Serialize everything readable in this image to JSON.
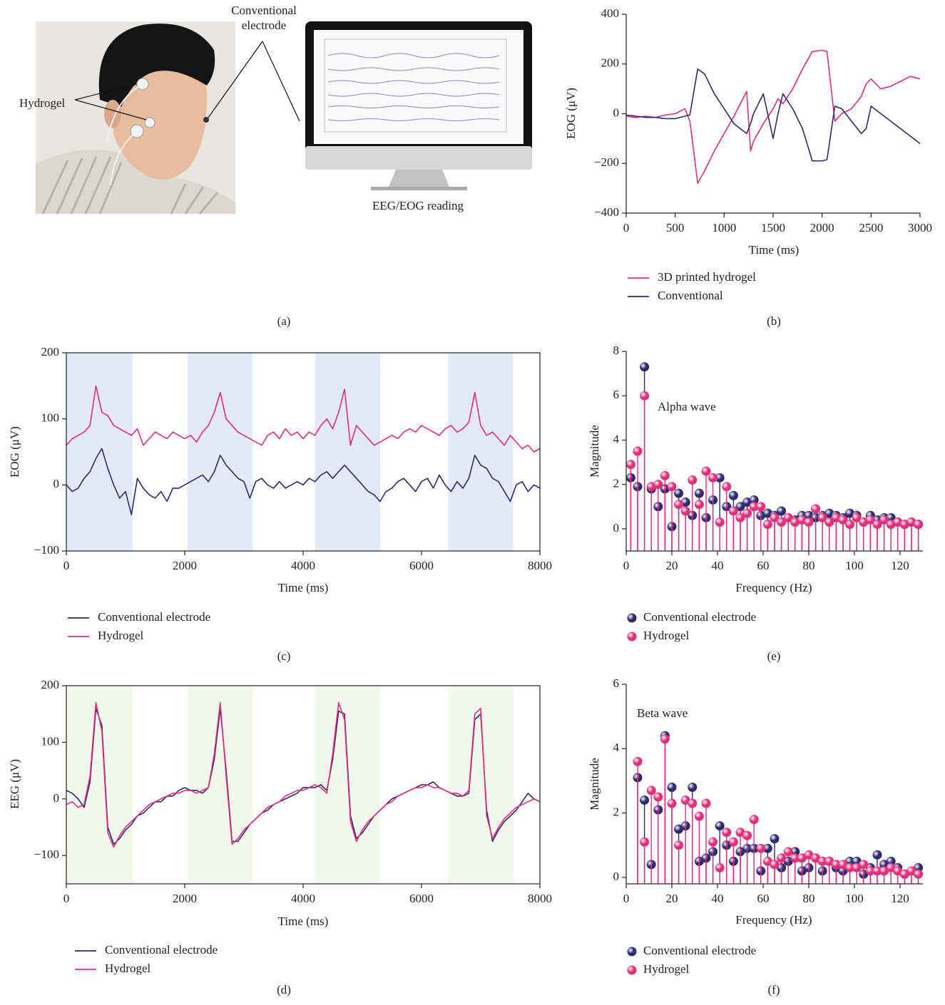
{
  "photo": {
    "labels": [
      "Conventional electrode",
      "Hydrogel"
    ],
    "screen_caption": "EEG/EOG reading",
    "caption": "(a)"
  },
  "chart_data": [
    {
      "type": "line",
      "caption": "(b)",
      "x_label": "Time (ms)",
      "y_label": "EOG (μV)",
      "xlim": [
        0,
        3000
      ],
      "xticks": [
        0,
        500,
        1000,
        1500,
        2000,
        2500,
        3000
      ],
      "ylim": [
        -400,
        400
      ],
      "yticks": [
        {
          "value": -400,
          "label": "−400"
        },
        {
          "value": -200,
          "label": "−200"
        },
        0,
        200,
        400
      ],
      "box": false,
      "x": [
        0,
        100,
        200,
        300,
        400,
        500,
        600,
        650,
        730,
        800,
        900,
        1000,
        1100,
        1230,
        1270,
        1300,
        1400,
        1500,
        1550,
        1600,
        1700,
        1800,
        1900,
        2000,
        2050,
        2130,
        2200,
        2300,
        2400,
        2450,
        2500,
        2600,
        2700,
        2800,
        2900,
        3000
      ],
      "series": [
        {
          "name": "3D printed hydrogel",
          "color": "#e0307a",
          "values": [
            -10,
            -15,
            -10,
            -15,
            -5,
            0,
            20,
            -30,
            -280,
            -230,
            -150,
            -80,
            -10,
            90,
            -150,
            -110,
            -40,
            20,
            60,
            40,
            100,
            180,
            250,
            255,
            250,
            -30,
            0,
            20,
            70,
            120,
            140,
            100,
            110,
            130,
            150,
            140
          ]
        },
        {
          "name": "Conventional",
          "color": "#2e2a6e",
          "values": [
            -5,
            -10,
            -15,
            -15,
            -20,
            -20,
            -10,
            -5,
            180,
            160,
            80,
            20,
            -40,
            -80,
            -40,
            0,
            80,
            -100,
            0,
            80,
            20,
            -60,
            -190,
            -190,
            -185,
            30,
            20,
            -30,
            -80,
            -60,
            30,
            0,
            -30,
            -60,
            -90,
            -120
          ]
        }
      ]
    },
    {
      "type": "line",
      "caption": "(c)",
      "x_label": "Time (ms)",
      "y_label": "EOG (μV)",
      "xlim": [
        0,
        8000
      ],
      "xticks": [
        0,
        2000,
        4000,
        6000,
        8000
      ],
      "ylim": [
        -100,
        200
      ],
      "yticks": [
        {
          "value": -100,
          "label": "−100"
        },
        0,
        100,
        200
      ],
      "box": true,
      "shade_color": "#e4e9f7",
      "shaded_regions": [
        [
          0,
          1120
        ],
        [
          2050,
          3150
        ],
        [
          4200,
          5300
        ],
        [
          6450,
          7550
        ]
      ],
      "x": [
        0,
        100,
        200,
        300,
        400,
        500,
        600,
        700,
        800,
        900,
        1000,
        1100,
        1200,
        1300,
        1400,
        1500,
        1600,
        1700,
        1800,
        1900,
        2000,
        2100,
        2200,
        2300,
        2400,
        2500,
        2600,
        2700,
        2800,
        2900,
        3000,
        3100,
        3200,
        3300,
        3400,
        3500,
        3600,
        3700,
        3800,
        3900,
        4000,
        4100,
        4200,
        4300,
        4400,
        4500,
        4600,
        4700,
        4800,
        4900,
        5000,
        5100,
        5200,
        5300,
        5400,
        5500,
        5600,
        5700,
        5800,
        5900,
        6000,
        6100,
        6200,
        6300,
        6400,
        6500,
        6600,
        6700,
        6800,
        6900,
        7000,
        7100,
        7200,
        7300,
        7400,
        7500,
        7600,
        7700,
        7800,
        7900,
        8000
      ],
      "series": [
        {
          "name": "Conventional electrode",
          "color": "#2e2a6e",
          "values": [
            0,
            -10,
            -5,
            10,
            20,
            40,
            55,
            25,
            0,
            -20,
            -10,
            -45,
            10,
            -5,
            -15,
            -20,
            -10,
            -25,
            -5,
            -5,
            0,
            5,
            10,
            15,
            5,
            20,
            45,
            30,
            20,
            10,
            5,
            -20,
            5,
            10,
            0,
            -5,
            5,
            -5,
            0,
            5,
            0,
            10,
            5,
            15,
            20,
            10,
            20,
            30,
            20,
            10,
            0,
            -10,
            -15,
            -25,
            -10,
            -5,
            5,
            10,
            0,
            -10,
            5,
            10,
            -5,
            15,
            0,
            -10,
            5,
            -5,
            10,
            45,
            30,
            25,
            10,
            5,
            -10,
            -25,
            0,
            5,
            -10,
            0,
            -5
          ]
        },
        {
          "name": "Hydrogel",
          "color": "#e0307a",
          "values": [
            60,
            70,
            75,
            80,
            90,
            150,
            110,
            105,
            90,
            85,
            80,
            75,
            85,
            60,
            70,
            80,
            75,
            70,
            80,
            75,
            70,
            75,
            65,
            80,
            90,
            110,
            140,
            100,
            90,
            80,
            75,
            70,
            65,
            60,
            75,
            80,
            70,
            85,
            75,
            80,
            70,
            80,
            75,
            90,
            100,
            85,
            110,
            145,
            60,
            90,
            80,
            70,
            60,
            65,
            70,
            75,
            70,
            80,
            85,
            80,
            90,
            85,
            80,
            75,
            85,
            90,
            80,
            85,
            95,
            140,
            90,
            75,
            80,
            70,
            60,
            75,
            65,
            55,
            60,
            50,
            55
          ]
        }
      ]
    },
    {
      "type": "line",
      "caption": "(d)",
      "x_label": "Time (ms)",
      "y_label": "EEG (μV)",
      "xlim": [
        0,
        8000
      ],
      "xticks": [
        0,
        2000,
        4000,
        6000,
        8000
      ],
      "ylim": [
        -150,
        200
      ],
      "yticks": [
        {
          "value": -100,
          "label": "−100"
        },
        0,
        100,
        200
      ],
      "box": true,
      "shade_color": "#f3f8ec",
      "shaded_regions": [
        [
          0,
          1120
        ],
        [
          2050,
          3150
        ],
        [
          4200,
          5300
        ],
        [
          6450,
          7550
        ]
      ],
      "x": [
        0,
        100,
        200,
        300,
        400,
        500,
        600,
        700,
        800,
        900,
        1000,
        1100,
        1200,
        1300,
        1400,
        1500,
        1600,
        1700,
        1800,
        1900,
        2000,
        2100,
        2200,
        2300,
        2400,
        2500,
        2600,
        2700,
        2800,
        2900,
        3000,
        3100,
        3200,
        3300,
        3400,
        3500,
        3600,
        3700,
        3800,
        3900,
        4000,
        4100,
        4200,
        4300,
        4400,
        4500,
        4600,
        4700,
        4800,
        4900,
        5000,
        5100,
        5200,
        5300,
        5400,
        5500,
        5600,
        5700,
        5800,
        5900,
        6000,
        6100,
        6200,
        6300,
        6400,
        6500,
        6600,
        6700,
        6800,
        6900,
        7000,
        7100,
        7200,
        7300,
        7400,
        7500,
        7600,
        7700,
        7800,
        7900,
        8000
      ],
      "series": [
        {
          "name": "Conventional electrode",
          "color": "#2e2a6e",
          "values": [
            15,
            10,
            0,
            -15,
            30,
            160,
            130,
            -50,
            -80,
            -70,
            -55,
            -45,
            -30,
            -25,
            -15,
            -5,
            -5,
            5,
            5,
            15,
            20,
            15,
            15,
            10,
            20,
            70,
            160,
            50,
            -75,
            -75,
            -60,
            -45,
            -35,
            -25,
            -20,
            -10,
            -5,
            0,
            5,
            10,
            20,
            20,
            20,
            25,
            15,
            70,
            155,
            150,
            -30,
            -70,
            -60,
            -45,
            -30,
            -20,
            -10,
            0,
            5,
            10,
            15,
            20,
            25,
            25,
            30,
            20,
            15,
            10,
            5,
            5,
            10,
            140,
            150,
            -20,
            -75,
            -55,
            -40,
            -30,
            -20,
            -5,
            10,
            0,
            -5
          ]
        },
        {
          "name": "Hydrogel",
          "color": "#e0307a",
          "values": [
            -10,
            -5,
            -15,
            -10,
            40,
            170,
            120,
            -60,
            -85,
            -65,
            -50,
            -40,
            -30,
            -20,
            -10,
            -5,
            0,
            5,
            10,
            10,
            15,
            15,
            10,
            15,
            20,
            80,
            170,
            40,
            -80,
            -70,
            -55,
            -45,
            -35,
            -25,
            -15,
            -10,
            -5,
            5,
            10,
            15,
            15,
            20,
            25,
            20,
            10,
            80,
            170,
            140,
            -40,
            -75,
            -55,
            -40,
            -30,
            -20,
            -10,
            -5,
            5,
            10,
            15,
            20,
            20,
            25,
            20,
            20,
            15,
            10,
            10,
            5,
            15,
            150,
            160,
            -30,
            -70,
            -50,
            -35,
            -25,
            -15,
            -10,
            -5,
            0,
            -5
          ]
        }
      ]
    },
    {
      "type": "stem",
      "caption": "(e)",
      "x_label": "Frequency (Hz)",
      "y_label": "Magnitude",
      "annotation": "Alpha wave",
      "xlim": [
        0,
        130
      ],
      "xticks": [
        0,
        20,
        40,
        60,
        80,
        100,
        120
      ],
      "ylim": [
        -1,
        8
      ],
      "yticks": [
        0,
        2,
        4,
        6,
        8
      ],
      "box": false,
      "x": [
        2,
        5,
        8,
        11,
        14,
        17,
        20,
        23,
        26,
        29,
        32,
        35,
        38,
        41,
        44,
        47,
        50,
        53,
        56,
        59,
        62,
        65,
        68,
        71,
        74,
        77,
        80,
        83,
        86,
        89,
        92,
        95,
        98,
        101,
        104,
        107,
        110,
        113,
        116,
        119,
        122,
        125,
        128
      ],
      "series": [
        {
          "name": "Conventional electrode",
          "color": "#2e2a6e",
          "values": [
            2.3,
            1.9,
            7.3,
            1.8,
            1.0,
            1.8,
            0.1,
            1.6,
            1.2,
            0.6,
            1.6,
            0.5,
            1.3,
            2.3,
            1.0,
            1.5,
            1.0,
            1.2,
            1.3,
            0.6,
            0.7,
            0.6,
            0.8,
            0.5,
            0.4,
            0.6,
            0.6,
            0.5,
            0.6,
            0.7,
            0.6,
            0.5,
            0.7,
            0.6,
            0.3,
            0.6,
            0.4,
            0.5,
            0.5,
            0.3,
            0.2,
            0.3,
            0.2
          ]
        },
        {
          "name": "Hydrogel",
          "color": "#e0307a",
          "values": [
            2.9,
            3.5,
            6.0,
            1.9,
            2.0,
            2.4,
            1.9,
            1.1,
            0.8,
            2.2,
            1.1,
            2.6,
            2.3,
            0.3,
            1.9,
            0.8,
            0.5,
            0.7,
            1.0,
            1.0,
            0.2,
            0.5,
            0.3,
            0.5,
            0.3,
            0.4,
            0.3,
            0.9,
            0.5,
            0.3,
            0.5,
            0.4,
            0.2,
            0.5,
            0.3,
            0.4,
            0.2,
            0.4,
            0.2,
            0.3,
            0.2,
            0.3,
            0.2
          ]
        }
      ]
    },
    {
      "type": "stem",
      "caption": "(f)",
      "x_label": "Frequency (Hz)",
      "y_label": "Magnitude",
      "annotation": "Beta wave",
      "xlim": [
        0,
        130
      ],
      "xticks": [
        0,
        20,
        40,
        60,
        80,
        100,
        120
      ],
      "ylim": [
        -0.2,
        6
      ],
      "yticks": [
        0,
        2,
        4,
        6
      ],
      "box": false,
      "x": [
        5,
        8,
        11,
        14,
        17,
        20,
        23,
        26,
        29,
        32,
        35,
        38,
        41,
        44,
        47,
        50,
        53,
        56,
        59,
        62,
        65,
        68,
        71,
        74,
        77,
        80,
        83,
        86,
        89,
        92,
        95,
        98,
        101,
        104,
        107,
        110,
        113,
        116,
        119,
        122,
        125,
        128
      ],
      "series": [
        {
          "name": "Conventional electrode",
          "color": "#2e2a6e",
          "values": [
            3.1,
            2.4,
            0.4,
            2.1,
            4.4,
            2.8,
            1.5,
            1.6,
            2.8,
            0.5,
            0.6,
            0.8,
            1.6,
            1.0,
            0.5,
            0.8,
            0.9,
            0.9,
            0.2,
            0.9,
            1.2,
            0.3,
            0.5,
            0.8,
            0.2,
            0.3,
            0.6,
            0.2,
            0.5,
            0.3,
            0.2,
            0.5,
            0.5,
            0.1,
            0.3,
            0.7,
            0.4,
            0.5,
            0.3,
            0.1,
            0.2,
            0.3
          ]
        },
        {
          "name": "Hydrogel",
          "color": "#e0307a",
          "values": [
            3.6,
            1.1,
            2.7,
            2.5,
            4.3,
            2.3,
            1.0,
            2.4,
            2.3,
            1.9,
            2.3,
            1.1,
            0.3,
            1.4,
            1.1,
            1.4,
            1.3,
            1.8,
            0.9,
            0.5,
            0.4,
            0.6,
            0.8,
            0.6,
            0.6,
            0.7,
            0.6,
            0.5,
            0.5,
            0.4,
            0.4,
            0.3,
            0.3,
            0.4,
            0.2,
            0.2,
            0.2,
            0.3,
            0.2,
            0.1,
            0.2,
            0.1
          ]
        }
      ]
    }
  ]
}
